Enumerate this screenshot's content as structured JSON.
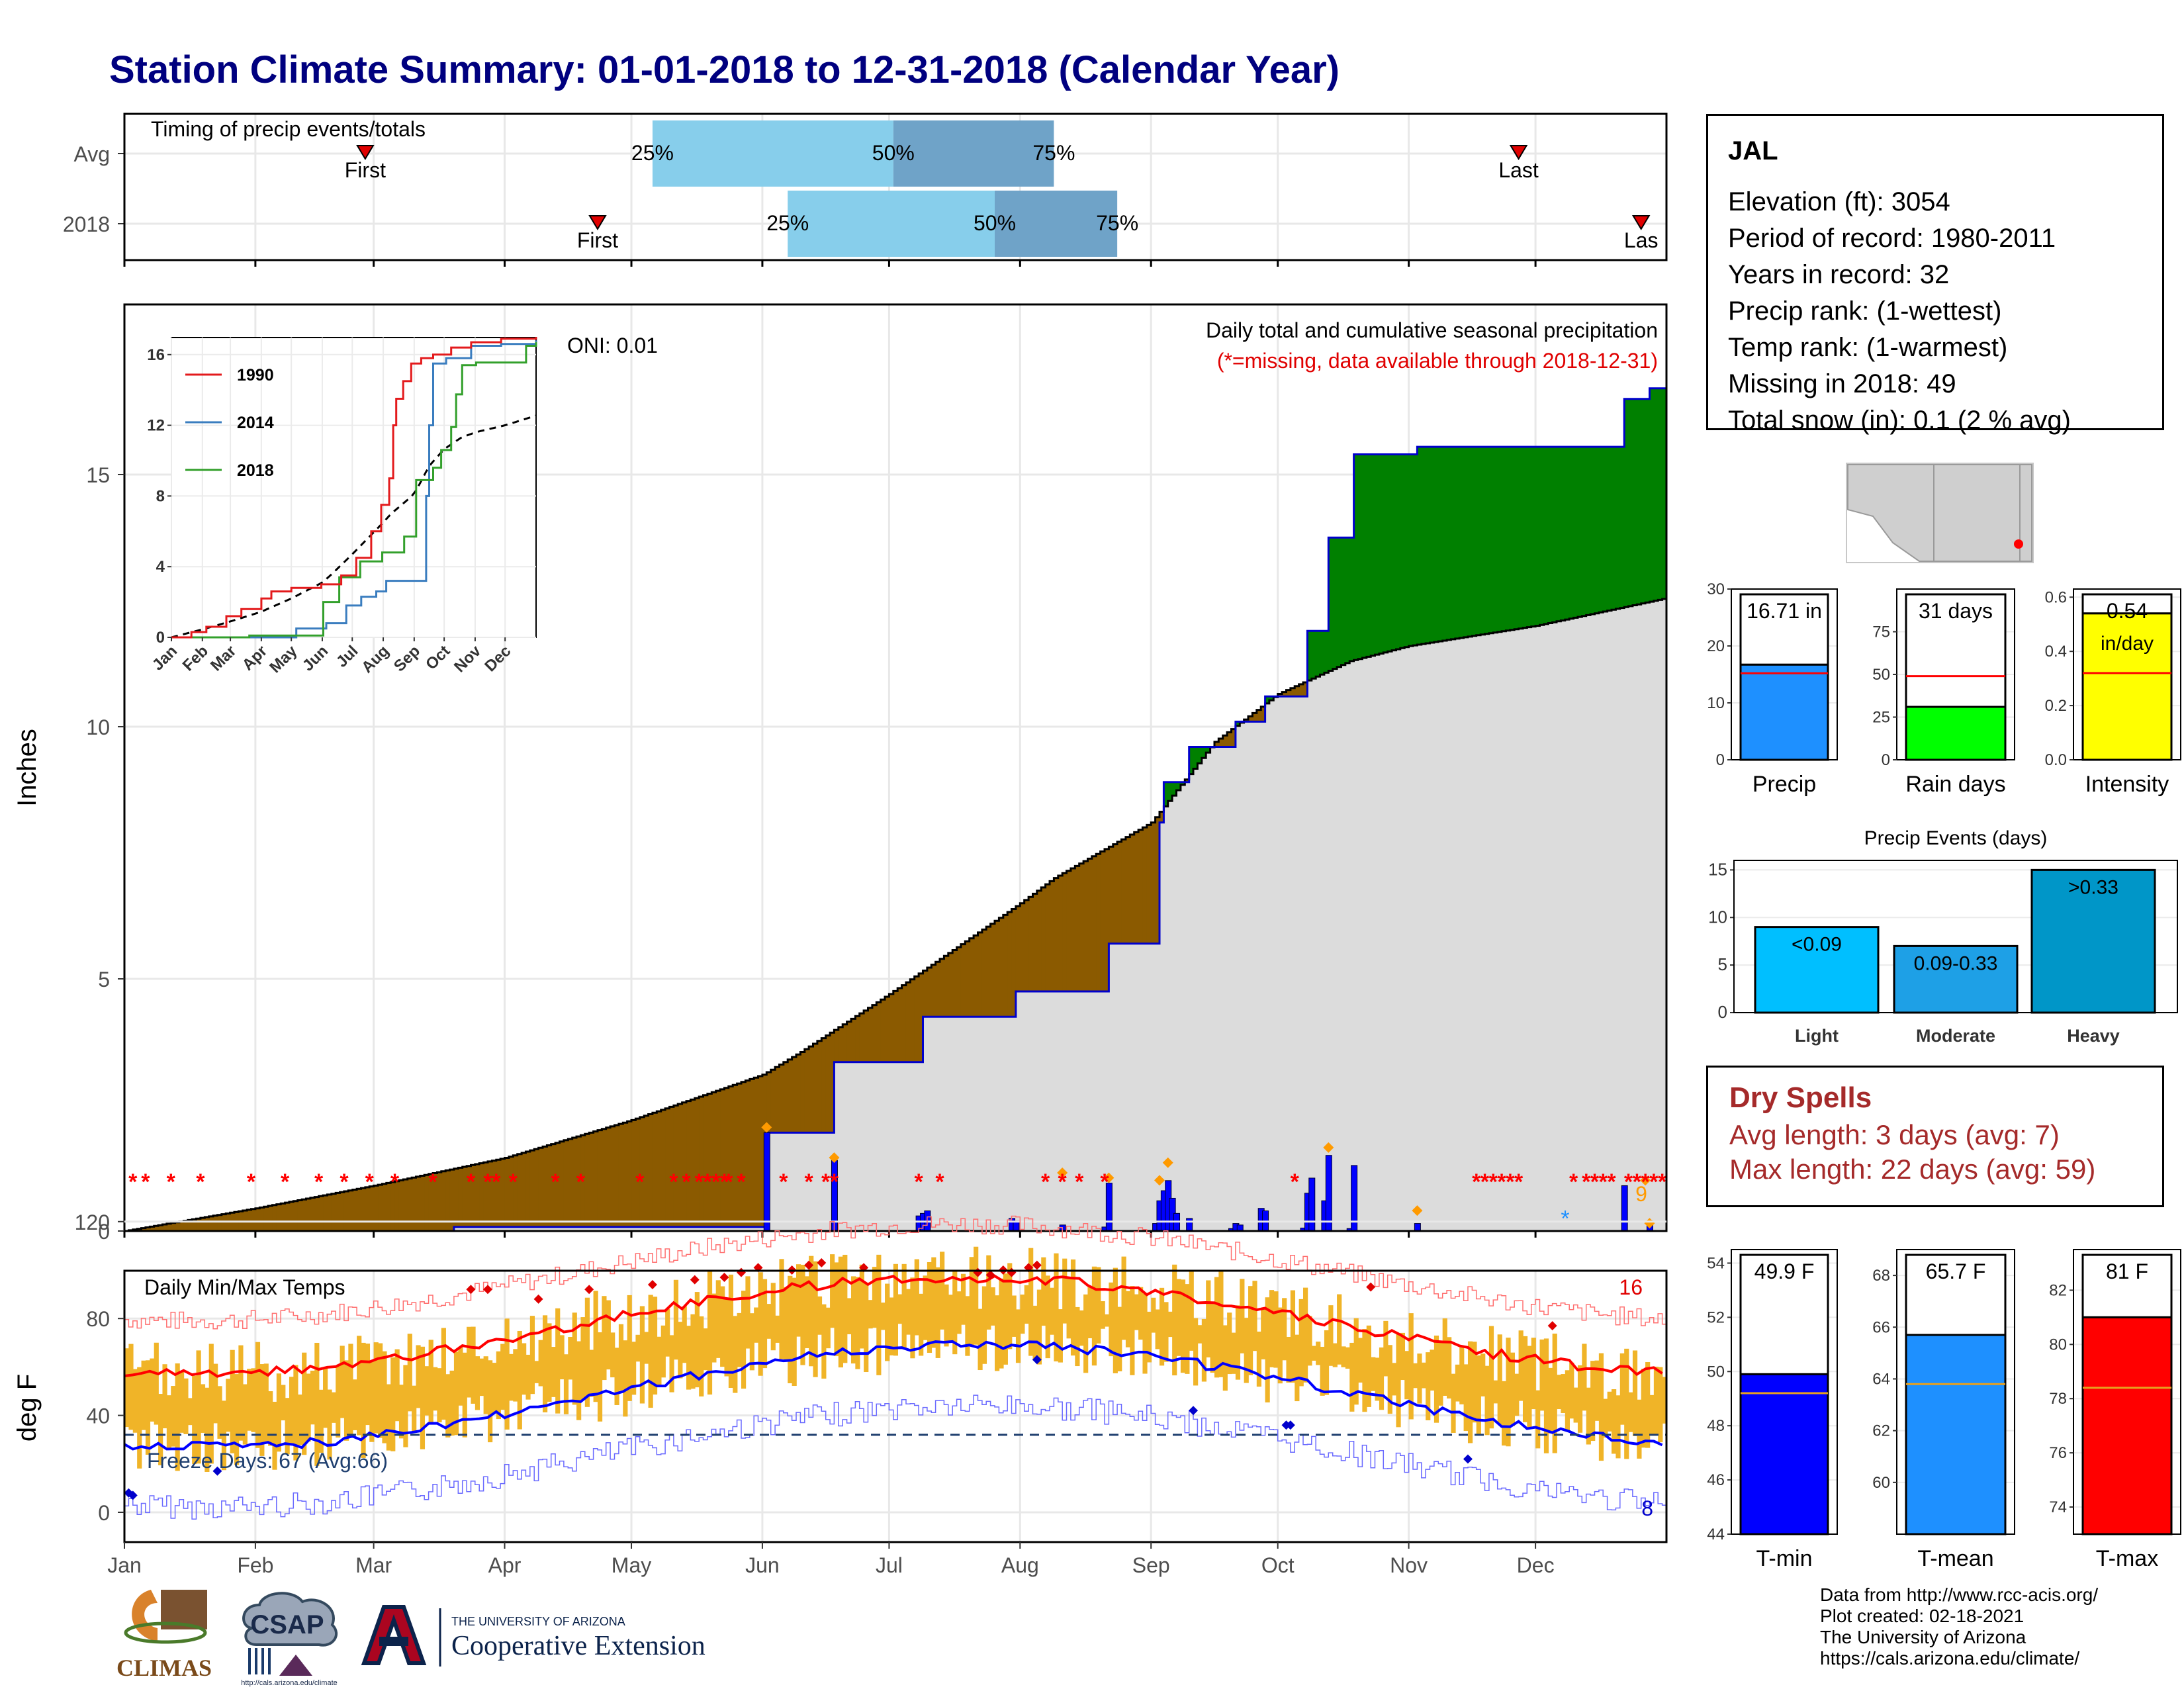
{
  "header": {
    "title": "Station Climate Summary: 01-01-2018 to 12-31-2018 (Calendar Year)"
  },
  "colors": {
    "title": "#00007f",
    "cumulative_fill": "#dcdcdc",
    "above_avg": "#008000",
    "below_avg": "#8b5a00",
    "daily_bars": "#0000ff",
    "missing": "#ff0000",
    "temp_bars": "#f0b428",
    "tmax_avg": "#ff0000",
    "tmin_avg": "#0000ff",
    "timing_iqr_low": "#87ceeb",
    "timing_iqr_high": "#6fa3c8"
  },
  "timing": {
    "title": "Timing of precip events/totals",
    "rows": [
      {
        "label": "Avg",
        "first": "First",
        "last": "Last",
        "p25": "25%",
        "p50": "50%",
        "p75": "75%"
      },
      {
        "label": "2018",
        "first": "First",
        "last": "Las",
        "p25": "25%",
        "p50": "50%",
        "p75": "75%"
      }
    ]
  },
  "precip_panel": {
    "ylabel": "Inches",
    "yticks": [
      "0",
      "5",
      "10",
      "15"
    ],
    "caption": "Daily total and cumulative seasonal precipitation",
    "missing_note": "(*=missing, data available through 2018-12-31)",
    "oni": "ONI: 0.01",
    "count_label": "9"
  },
  "inset": {
    "yticks": [
      "0",
      "4",
      "8",
      "12",
      "16"
    ],
    "months": [
      "Jan",
      "Feb",
      "Mar",
      "Apr",
      "May",
      "Jun",
      "Jul",
      "Aug",
      "Sep",
      "Oct",
      "Nov",
      "Dec"
    ],
    "legend": [
      {
        "name": "1990",
        "color": "#e31a1c"
      },
      {
        "name": "2014",
        "color": "#3a7dbf"
      },
      {
        "name": "2018",
        "color": "#33a02c"
      }
    ]
  },
  "temp_panel": {
    "ylabel": "deg F",
    "yticks": [
      "0",
      "40",
      "80",
      "120"
    ],
    "title": "Daily Min/Max Temps",
    "freeze": "Freeze Days: 67 (Avg:66)",
    "hot_count": "16",
    "cold_count": "8"
  },
  "months": [
    "Jan",
    "Feb",
    "Mar",
    "Apr",
    "May",
    "Jun",
    "Jul",
    "Aug",
    "Sep",
    "Oct",
    "Nov",
    "Dec"
  ],
  "station": {
    "name": "JAL",
    "lines": [
      "Elevation (ft): 3054",
      "Period of record: 1980-2011",
      "Years in record: 32",
      "Precip rank:  (1-wettest)",
      "Temp rank:  (1-warmest)",
      "Missing in 2018: 49",
      "Total snow (in): 0.1 (2 % avg)"
    ]
  },
  "small_bars": {
    "precip": {
      "label": "Precip",
      "value_label": "16.71 in",
      "value": 16.71,
      "avg": 15.2,
      "ylim": [
        0,
        30
      ],
      "ticks": [
        "0",
        "10",
        "20",
        "30"
      ],
      "color": "#1e90ff"
    },
    "rain_days": {
      "label": "Rain days",
      "value_label": "31 days",
      "value": 31,
      "avg": 49,
      "ylim": [
        0,
        100
      ],
      "ticks": [
        "0",
        "25",
        "50",
        "75"
      ],
      "color": "#00ff00"
    },
    "intensity": {
      "label": "Intensity",
      "value_label": "0.54",
      "value_label2": "in/day",
      "value": 0.54,
      "avg": 0.32,
      "ylim": [
        0,
        0.63
      ],
      "ticks": [
        "0.0",
        "0.2",
        "0.4",
        "0.6"
      ],
      "color": "#ffff00"
    }
  },
  "precip_events": {
    "title": "Precip Events (days)",
    "ticks": [
      "0",
      "5",
      "10",
      "15"
    ],
    "bars": [
      {
        "label": "Light",
        "text": "<0.09",
        "value": 9,
        "color": "#00bfff"
      },
      {
        "label": "Moderate",
        "text": "0.09-0.33",
        "value": 7,
        "color": "#1ea0e6"
      },
      {
        "label": "Heavy",
        "text": ">0.33",
        "value": 15,
        "color": "#0096c8"
      }
    ]
  },
  "dry_spells": {
    "title": "Dry Spells",
    "avg": "Avg length: 3 days (avg: 7)",
    "max": "Max length: 22 days (avg: 59)"
  },
  "temp_bars": {
    "tmin": {
      "label": "T-min",
      "value_label": "49.9 F",
      "value": 49.9,
      "avg": 49.2,
      "ylim": [
        44,
        54.5
      ],
      "ticks": [
        "44",
        "46",
        "48",
        "50",
        "52",
        "54"
      ],
      "color": "#0000ff"
    },
    "tmean": {
      "label": "T-mean",
      "value_label": "65.7 F",
      "value": 65.7,
      "avg": 63.8,
      "ylim": [
        58,
        69
      ],
      "ticks": [
        "60",
        "62",
        "64",
        "66",
        "68"
      ],
      "color": "#1e90ff"
    },
    "tmax": {
      "label": "T-max",
      "value_label": "81 F",
      "value": 81,
      "avg": 78.4,
      "ylim": [
        73,
        83.5
      ],
      "ticks": [
        "74",
        "76",
        "78",
        "80",
        "82"
      ],
      "color": "#ff0000"
    }
  },
  "credits": {
    "lines": [
      "Data from http://www.rcc-acis.org/",
      "Plot created: 02-18-2021",
      "The University of Arizona",
      "https://cals.arizona.edu/climate/"
    ]
  },
  "logos": {
    "climas": "CLIMAS",
    "csap": "CSAP",
    "csap_url": "http://cals.arizona.edu/climate",
    "ua_small": "THE UNIVERSITY OF ARIZONA",
    "ua_coop": "Cooperative Extension"
  }
}
